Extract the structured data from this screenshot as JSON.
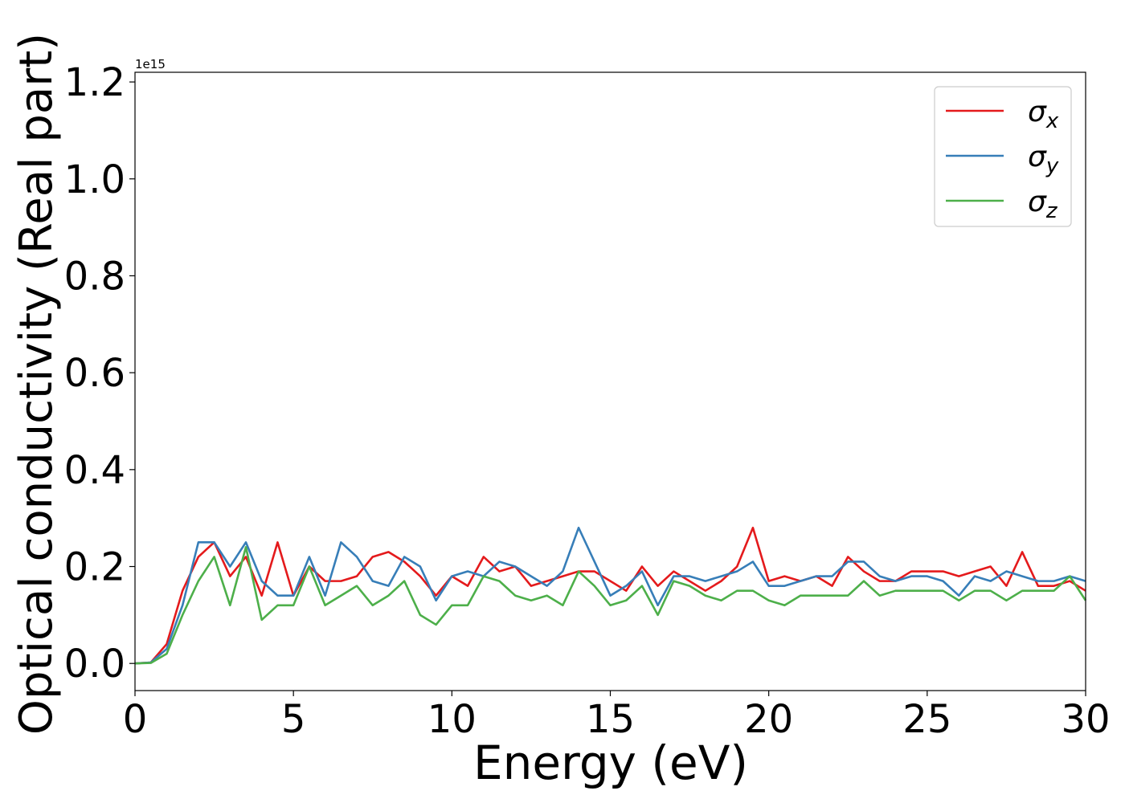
{
  "chart_data": {
    "type": "line",
    "xlabel": "Energy (eV)",
    "ylabel": "Optical conductivity (Real part)",
    "offset_text": "1e15",
    "x": [
      0,
      0.5,
      1,
      1.5,
      2,
      2.5,
      3,
      3.5,
      4,
      4.5,
      5,
      5.5,
      6,
      6.5,
      7,
      7.5,
      8,
      8.5,
      9,
      9.5,
      10,
      10.5,
      11,
      11.5,
      12,
      12.5,
      13,
      13.5,
      14,
      14.5,
      15,
      15.5,
      16,
      16.5,
      17,
      17.5,
      18,
      18.5,
      19,
      19.5,
      20,
      20.5,
      21,
      21.5,
      22,
      22.5,
      23,
      23.5,
      24,
      24.5,
      25,
      25.5,
      26,
      26.5,
      27,
      27.5,
      28,
      28.5,
      29,
      29.5,
      30
    ],
    "series": [
      {
        "name": "σx",
        "color": "#e41a1c",
        "values": [
          0,
          0.002,
          0.04,
          0.15,
          0.22,
          0.25,
          0.18,
          0.22,
          0.14,
          0.25,
          0.14,
          0.2,
          0.17,
          0.17,
          0.18,
          0.22,
          0.23,
          0.21,
          0.18,
          0.14,
          0.18,
          0.16,
          0.22,
          0.19,
          0.2,
          0.16,
          0.17,
          0.18,
          0.19,
          0.19,
          0.17,
          0.15,
          0.2,
          0.16,
          0.19,
          0.17,
          0.15,
          0.17,
          0.2,
          0.28,
          0.17,
          0.18,
          0.17,
          0.18,
          0.16,
          0.22,
          0.19,
          0.17,
          0.17,
          0.19,
          0.19,
          0.19,
          0.18,
          0.19,
          0.2,
          0.16,
          0.23,
          0.16,
          0.16,
          0.17,
          0.15
        ]
      },
      {
        "name": "σy",
        "color": "#377eb8",
        "values": [
          0,
          0.002,
          0.03,
          0.12,
          0.25,
          0.25,
          0.2,
          0.25,
          0.17,
          0.14,
          0.14,
          0.22,
          0.14,
          0.25,
          0.22,
          0.17,
          0.16,
          0.22,
          0.2,
          0.13,
          0.18,
          0.19,
          0.18,
          0.21,
          0.2,
          0.18,
          0.16,
          0.19,
          0.28,
          0.21,
          0.14,
          0.16,
          0.19,
          0.12,
          0.18,
          0.18,
          0.17,
          0.18,
          0.19,
          0.21,
          0.16,
          0.16,
          0.17,
          0.18,
          0.18,
          0.21,
          0.21,
          0.18,
          0.17,
          0.18,
          0.18,
          0.17,
          0.14,
          0.18,
          0.17,
          0.19,
          0.18,
          0.17,
          0.17,
          0.18,
          0.17
        ]
      },
      {
        "name": "σz",
        "color": "#4daf4a",
        "values": [
          0,
          0.001,
          0.02,
          0.1,
          0.17,
          0.22,
          0.12,
          0.24,
          0.09,
          0.12,
          0.12,
          0.2,
          0.12,
          0.14,
          0.16,
          0.12,
          0.14,
          0.17,
          0.1,
          0.08,
          0.12,
          0.12,
          0.18,
          0.17,
          0.14,
          0.13,
          0.14,
          0.12,
          0.19,
          0.16,
          0.12,
          0.13,
          0.16,
          0.1,
          0.17,
          0.16,
          0.14,
          0.13,
          0.15,
          0.15,
          0.13,
          0.12,
          0.14,
          0.14,
          0.14,
          0.14,
          0.17,
          0.14,
          0.15,
          0.15,
          0.15,
          0.15,
          0.13,
          0.15,
          0.15,
          0.13,
          0.15,
          0.15,
          0.15,
          0.18,
          0.13
        ]
      }
    ],
    "xlim": [
      0,
      30
    ],
    "xticks": [
      0,
      5,
      10,
      15,
      20,
      25,
      30
    ],
    "ylim": [
      -0.056,
      1.22
    ],
    "yticks": [
      {
        "value": 0,
        "label": "0.0"
      },
      0.2,
      0.4,
      0.6,
      0.8,
      {
        "value": 1,
        "label": "1.0"
      },
      1.2
    ],
    "legend": "upper right",
    "grid": false
  }
}
